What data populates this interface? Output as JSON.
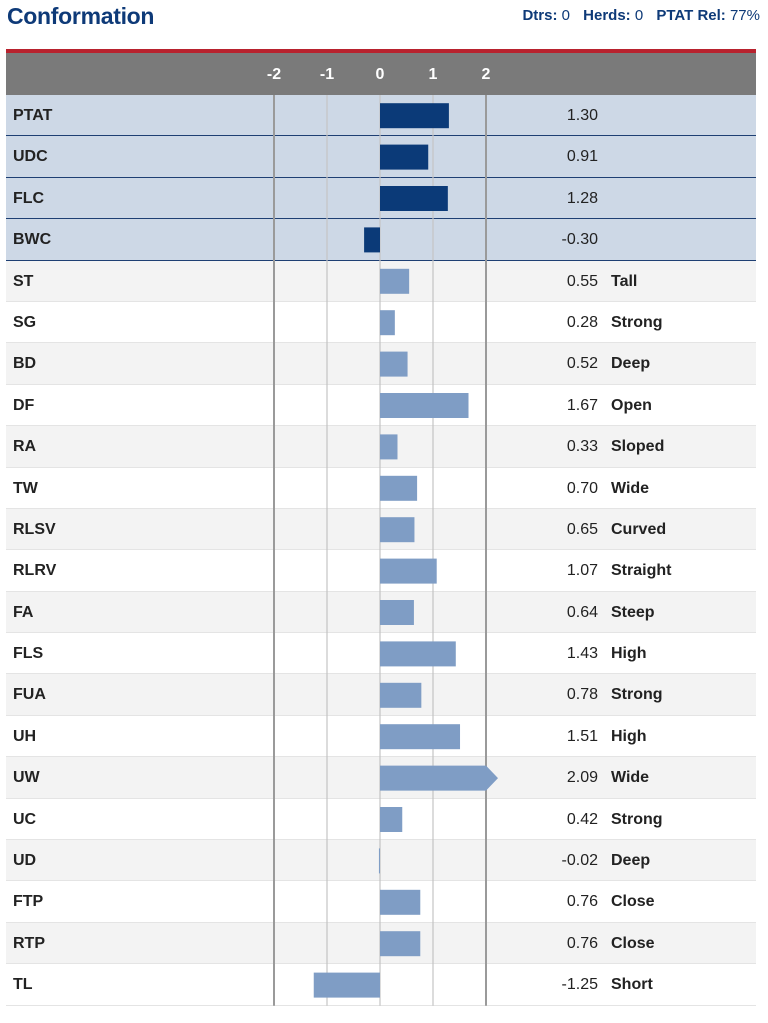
{
  "header": {
    "title": "Conformation",
    "dtrs_label": "Dtrs:",
    "dtrs_value": "0",
    "herds_label": "Herds:",
    "herds_value": "0",
    "rel_label": "PTAT Rel:",
    "rel_value": "77%"
  },
  "colors": {
    "title": "#0e3a78",
    "accent_line": "#b8222e",
    "axis_bar": "#7a7a7a",
    "highlight_row": "#cdd8e6",
    "bar_dark": "#0b3a78",
    "bar_light": "#7f9dc5"
  },
  "chart_data": {
    "type": "bar",
    "orientation": "horizontal",
    "xlim": [
      -2,
      2
    ],
    "ticks": [
      "-2",
      "-1",
      "0",
      "1",
      "2"
    ],
    "grid": true,
    "rows": [
      {
        "label": "PTAT",
        "value": 1.3,
        "value_text": "1.30",
        "descriptor": "",
        "highlight": true
      },
      {
        "label": "UDC",
        "value": 0.91,
        "value_text": "0.91",
        "descriptor": "",
        "highlight": true
      },
      {
        "label": "FLC",
        "value": 1.28,
        "value_text": "1.28",
        "descriptor": "",
        "highlight": true
      },
      {
        "label": "BWC",
        "value": -0.3,
        "value_text": "-0.30",
        "descriptor": "",
        "highlight": true
      },
      {
        "label": "ST",
        "value": 0.55,
        "value_text": "0.55",
        "descriptor": "Tall",
        "highlight": false
      },
      {
        "label": "SG",
        "value": 0.28,
        "value_text": "0.28",
        "descriptor": "Strong",
        "highlight": false
      },
      {
        "label": "BD",
        "value": 0.52,
        "value_text": "0.52",
        "descriptor": "Deep",
        "highlight": false
      },
      {
        "label": "DF",
        "value": 1.67,
        "value_text": "1.67",
        "descriptor": "Open",
        "highlight": false
      },
      {
        "label": "RA",
        "value": 0.33,
        "value_text": "0.33",
        "descriptor": "Sloped",
        "highlight": false
      },
      {
        "label": "TW",
        "value": 0.7,
        "value_text": "0.70",
        "descriptor": "Wide",
        "highlight": false
      },
      {
        "label": "RLSV",
        "value": 0.65,
        "value_text": "0.65",
        "descriptor": "Curved",
        "highlight": false
      },
      {
        "label": "RLRV",
        "value": 1.07,
        "value_text": "1.07",
        "descriptor": "Straight",
        "highlight": false
      },
      {
        "label": "FA",
        "value": 0.64,
        "value_text": "0.64",
        "descriptor": "Steep",
        "highlight": false
      },
      {
        "label": "FLS",
        "value": 1.43,
        "value_text": "1.43",
        "descriptor": "High",
        "highlight": false
      },
      {
        "label": "FUA",
        "value": 0.78,
        "value_text": "0.78",
        "descriptor": "Strong",
        "highlight": false
      },
      {
        "label": "UH",
        "value": 1.51,
        "value_text": "1.51",
        "descriptor": "High",
        "highlight": false
      },
      {
        "label": "UW",
        "value": 2.09,
        "value_text": "2.09",
        "descriptor": "Wide",
        "highlight": false
      },
      {
        "label": "UC",
        "value": 0.42,
        "value_text": "0.42",
        "descriptor": "Strong",
        "highlight": false
      },
      {
        "label": "UD",
        "value": -0.02,
        "value_text": "-0.02",
        "descriptor": "Deep",
        "highlight": false
      },
      {
        "label": "FTP",
        "value": 0.76,
        "value_text": "0.76",
        "descriptor": "Close",
        "highlight": false
      },
      {
        "label": "RTP",
        "value": 0.76,
        "value_text": "0.76",
        "descriptor": "Close",
        "highlight": false
      },
      {
        "label": "TL",
        "value": -1.25,
        "value_text": "-1.25",
        "descriptor": "Short",
        "highlight": false
      }
    ]
  }
}
